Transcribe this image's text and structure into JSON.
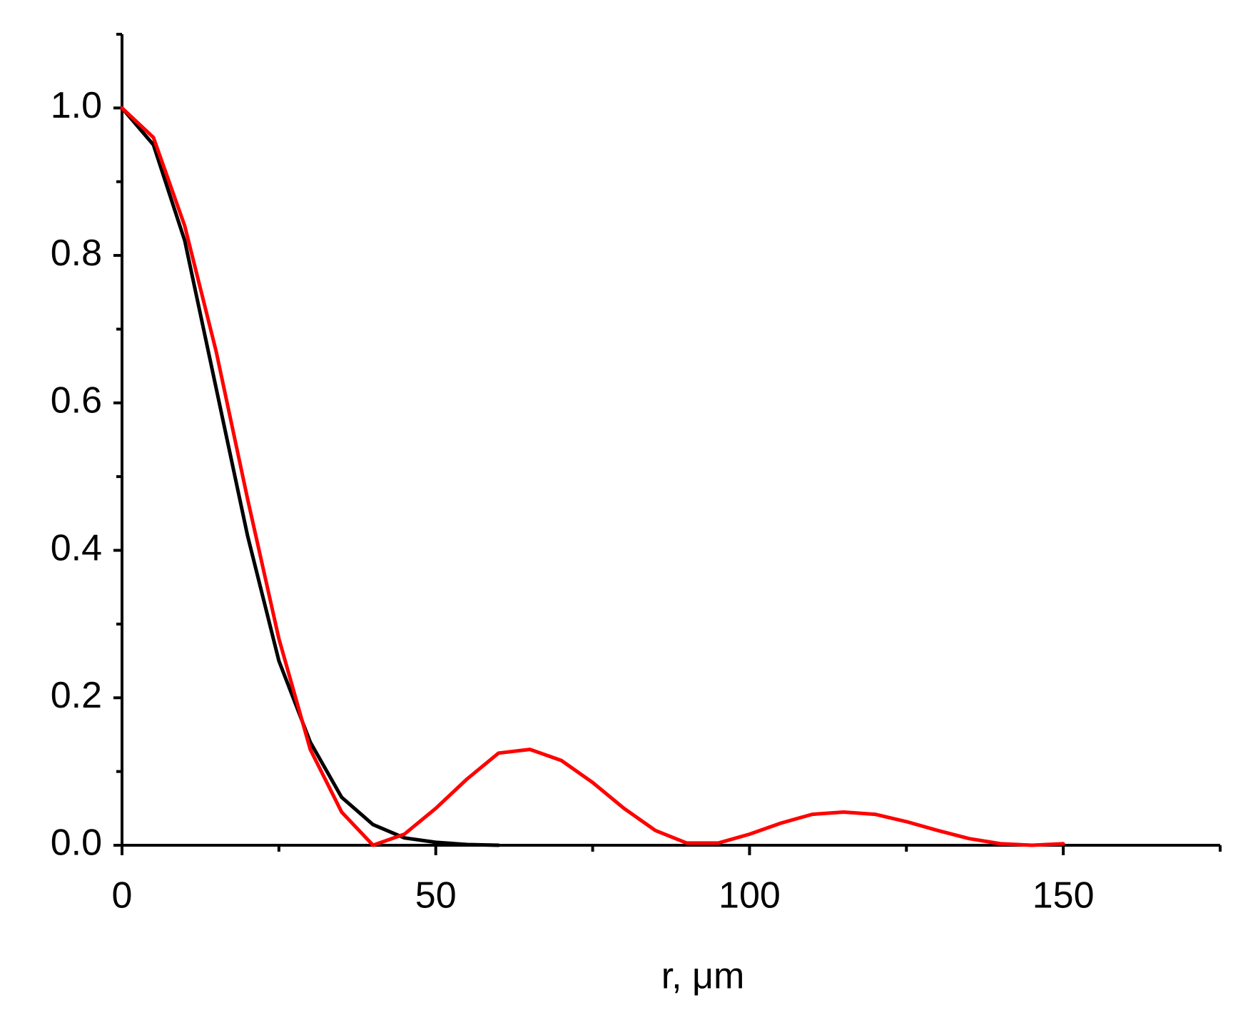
{
  "chart_data": {
    "type": "line",
    "x_label": "r, μm",
    "x": [
      0,
      5,
      10,
      15,
      20,
      25,
      30,
      35,
      40,
      45,
      50,
      55,
      60,
      65,
      70,
      75,
      80,
      85,
      90,
      95,
      100,
      105,
      110,
      115,
      120,
      125,
      130,
      135,
      140,
      145,
      150
    ],
    "series": [
      {
        "color": "#000000",
        "values": [
          1.0,
          0.95,
          0.82,
          0.62,
          0.42,
          0.25,
          0.14,
          0.065,
          0.028,
          0.01,
          0.004,
          0.001,
          0.0,
          null,
          null,
          null,
          null,
          null,
          null,
          null,
          null,
          null,
          null,
          null,
          null,
          null,
          null,
          null,
          null,
          null,
          null
        ]
      },
      {
        "color": "#ff0000",
        "values": [
          1.0,
          0.96,
          0.84,
          0.67,
          0.47,
          0.28,
          0.13,
          0.045,
          0.0,
          0.015,
          0.05,
          0.09,
          0.125,
          0.13,
          0.115,
          0.085,
          0.05,
          0.02,
          0.003,
          0.003,
          0.015,
          0.03,
          0.042,
          0.045,
          0.042,
          0.032,
          0.02,
          0.009,
          0.002,
          0.0,
          0.002
        ]
      }
    ],
    "xlim": [
      0,
      175
    ],
    "xticks": [
      0,
      50,
      100,
      150
    ],
    "xminorticks": [
      25,
      75,
      125,
      175
    ],
    "ylim": [
      0,
      1.1
    ],
    "yticks": [
      {
        "value": 0,
        "label": "0.0"
      },
      0.2,
      0.4,
      0.6,
      0.8,
      {
        "value": 1,
        "label": "1.0"
      }
    ],
    "yminorticks": [
      0.1,
      0.3,
      0.5,
      0.7,
      0.9,
      1.1
    ]
  }
}
